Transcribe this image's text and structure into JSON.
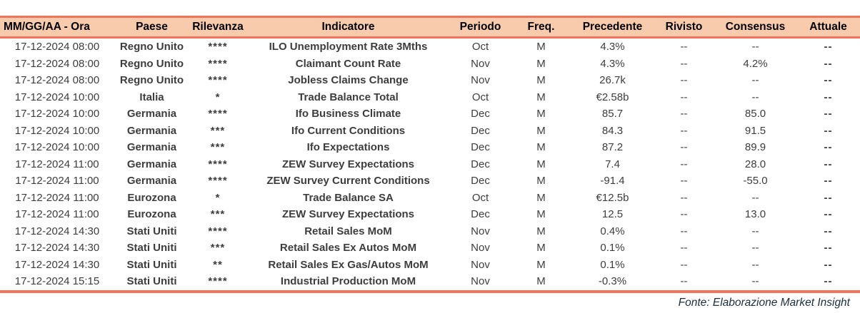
{
  "header": {
    "columns": [
      "MM/GG/AA - Ora",
      "Paese",
      "Rilevanza",
      "Indicatore",
      "Periodo",
      "Freq.",
      "Precedente",
      "Rivisto",
      "Consensus",
      "Attuale"
    ]
  },
  "rows": [
    {
      "datetime": "17-12-2024 08:00",
      "country": "Regno Unito",
      "relevance": "****",
      "indicator": "ILO Unemployment Rate 3Mths",
      "period": "Oct",
      "freq": "M",
      "previous": "4.3%",
      "revised": "--",
      "consensus": "--",
      "actual": "--"
    },
    {
      "datetime": "17-12-2024 08:00",
      "country": "Regno Unito",
      "relevance": "****",
      "indicator": "Claimant Count Rate",
      "period": "Nov",
      "freq": "M",
      "previous": "4.3%",
      "revised": "--",
      "consensus": "4.2%",
      "actual": "--"
    },
    {
      "datetime": "17-12-2024 08:00",
      "country": "Regno Unito",
      "relevance": "****",
      "indicator": "Jobless Claims Change",
      "period": "Nov",
      "freq": "M",
      "previous": "26.7k",
      "revised": "--",
      "consensus": "--",
      "actual": "--"
    },
    {
      "datetime": "17-12-2024 10:00",
      "country": "Italia",
      "relevance": "*",
      "indicator": "Trade Balance Total",
      "period": "Oct",
      "freq": "M",
      "previous": "€2.58b",
      "revised": "--",
      "consensus": "--",
      "actual": "--"
    },
    {
      "datetime": "17-12-2024 10:00",
      "country": "Germania",
      "relevance": "****",
      "indicator": "Ifo Business Climate",
      "period": "Dec",
      "freq": "M",
      "previous": "85.7",
      "revised": "--",
      "consensus": "85.0",
      "actual": "--"
    },
    {
      "datetime": "17-12-2024 10:00",
      "country": "Germania",
      "relevance": "***",
      "indicator": "Ifo Current Conditions",
      "period": "Dec",
      "freq": "M",
      "previous": "84.3",
      "revised": "--",
      "consensus": "91.5",
      "actual": "--"
    },
    {
      "datetime": "17-12-2024 10:00",
      "country": "Germania",
      "relevance": "***",
      "indicator": "Ifo Expectations",
      "period": "Dec",
      "freq": "M",
      "previous": "87.2",
      "revised": "--",
      "consensus": "89.9",
      "actual": "--"
    },
    {
      "datetime": "17-12-2024 11:00",
      "country": "Germania",
      "relevance": "****",
      "indicator": "ZEW Survey Expectations",
      "period": "Dec",
      "freq": "M",
      "previous": "7.4",
      "revised": "--",
      "consensus": "28.0",
      "actual": "--"
    },
    {
      "datetime": "17-12-2024 11:00",
      "country": "Germania",
      "relevance": "****",
      "indicator": "ZEW Survey Current Conditions",
      "period": "Dec",
      "freq": "M",
      "previous": "-91.4",
      "revised": "--",
      "consensus": "-55.0",
      "actual": "--"
    },
    {
      "datetime": "17-12-2024 11:00",
      "country": "Eurozona",
      "relevance": "*",
      "indicator": "Trade Balance SA",
      "period": "Oct",
      "freq": "M",
      "previous": "€12.5b",
      "revised": "--",
      "consensus": "--",
      "actual": "--"
    },
    {
      "datetime": "17-12-2024 11:00",
      "country": "Eurozona",
      "relevance": "***",
      "indicator": "ZEW Survey Expectations",
      "period": "Dec",
      "freq": "M",
      "previous": "12.5",
      "revised": "--",
      "consensus": "13.0",
      "actual": "--"
    },
    {
      "datetime": "17-12-2024 14:30",
      "country": "Stati Uniti",
      "relevance": "****",
      "indicator": "Retail Sales MoM",
      "period": "Nov",
      "freq": "M",
      "previous": "0.4%",
      "revised": "--",
      "consensus": "--",
      "actual": "--"
    },
    {
      "datetime": "17-12-2024 14:30",
      "country": "Stati Uniti",
      "relevance": "***",
      "indicator": "Retail Sales Ex Autos MoM",
      "period": "Nov",
      "freq": "M",
      "previous": "0.1%",
      "revised": "--",
      "consensus": "--",
      "actual": "--"
    },
    {
      "datetime": "17-12-2024 14:30",
      "country": "Stati Uniti",
      "relevance": "**",
      "indicator": "Retail Sales Ex Gas/Autos MoM",
      "period": "Nov",
      "freq": "M",
      "previous": "0.1%",
      "revised": "--",
      "consensus": "--",
      "actual": "--"
    },
    {
      "datetime": "17-12-2024 15:15",
      "country": "Stati Uniti",
      "relevance": "****",
      "indicator": "Industrial Production MoM",
      "period": "Nov",
      "freq": "M",
      "previous": "-0.3%",
      "revised": "--",
      "consensus": "--",
      "actual": "--"
    }
  ],
  "footer": {
    "source": "Fonte: Elaborazione Market Insight"
  },
  "colors": {
    "header_bg": "#F8CBAD",
    "accent_border": "#F0735A",
    "relevance_stars": "#FF0000",
    "footer_text": "#1c2f3f"
  }
}
